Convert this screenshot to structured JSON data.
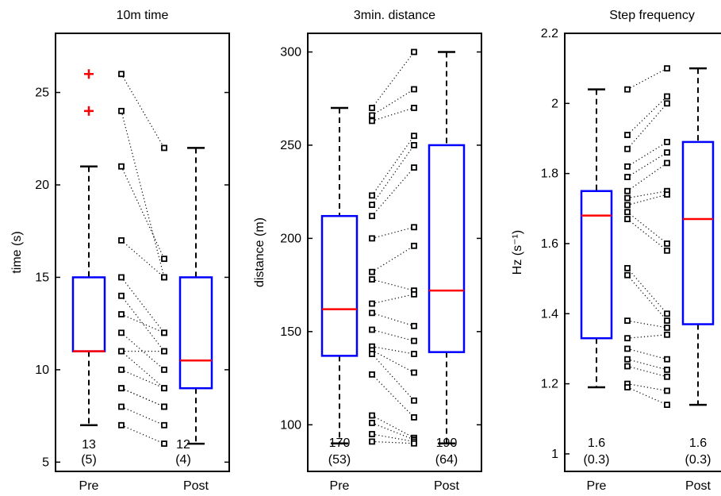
{
  "chart_data": [
    {
      "type": "box",
      "title": "10m time",
      "ylabel": "time (s)",
      "ylim": [
        4.5,
        28.2
      ],
      "yticks": [
        5,
        10,
        15,
        20,
        25
      ],
      "yticklabels": [
        "5",
        "10",
        "15",
        "20",
        "25"
      ],
      "categories": [
        "Pre",
        "Post"
      ],
      "boxes": [
        {
          "name": "Pre",
          "whisker_low": 7,
          "q1": 11,
          "median": 11,
          "q3": 15,
          "whisker_high": 21,
          "outliers": [
            24,
            26
          ]
        },
        {
          "name": "Post",
          "whisker_low": 6,
          "q1": 9,
          "median": 10.5,
          "q3": 15,
          "whisker_high": 22,
          "outliers": []
        }
      ],
      "annotations": [
        {
          "category": "Pre",
          "value": "13",
          "sd": "(5)"
        },
        {
          "category": "Post",
          "value": "12",
          "sd": "(4)"
        }
      ],
      "pairs": [
        [
          26,
          22
        ],
        [
          24,
          15
        ],
        [
          21,
          16
        ],
        [
          17,
          15
        ],
        [
          15,
          12
        ],
        [
          14,
          11
        ],
        [
          13,
          12
        ],
        [
          12,
          10
        ],
        [
          11,
          9
        ],
        [
          11,
          11
        ],
        [
          10,
          9
        ],
        [
          9,
          8
        ],
        [
          9,
          8
        ],
        [
          8,
          7
        ],
        [
          7,
          6
        ]
      ]
    },
    {
      "type": "box",
      "title": "3min. distance",
      "ylabel": "distance (m)",
      "ylim": [
        75,
        310
      ],
      "yticks": [
        100,
        150,
        200,
        250,
        300
      ],
      "yticklabels": [
        "100",
        "150",
        "200",
        "250",
        "300"
      ],
      "categories": [
        "Pre",
        "Post"
      ],
      "boxes": [
        {
          "name": "Pre",
          "whisker_low": 90,
          "q1": 137,
          "median": 162,
          "q3": 212,
          "whisker_high": 270,
          "outliers": []
        },
        {
          "name": "Post",
          "whisker_low": 90,
          "q1": 139,
          "median": 172,
          "q3": 250,
          "whisker_high": 300,
          "outliers": []
        }
      ],
      "annotations": [
        {
          "category": "Pre",
          "value": "170",
          "sd": "(53)"
        },
        {
          "category": "Post",
          "value": "190",
          "sd": "(64)"
        }
      ],
      "pairs": [
        [
          270,
          300
        ],
        [
          266,
          280
        ],
        [
          263,
          270
        ],
        [
          223,
          255
        ],
        [
          218,
          250
        ],
        [
          212,
          238
        ],
        [
          200,
          206
        ],
        [
          182,
          196
        ],
        [
          178,
          172
        ],
        [
          165,
          170
        ],
        [
          160,
          153
        ],
        [
          151,
          145
        ],
        [
          142,
          138
        ],
        [
          140,
          128
        ],
        [
          138,
          113
        ],
        [
          127,
          104
        ],
        [
          105,
          93
        ],
        [
          101,
          92
        ],
        [
          95,
          91
        ],
        [
          91,
          90
        ]
      ]
    },
    {
      "type": "box",
      "title": "Step frequency",
      "ylabel": "Hz (s⁻¹)",
      "ylim": [
        0.95,
        2.2
      ],
      "yticks": [
        1,
        1.2,
        1.4,
        1.6,
        1.8,
        2,
        2.2
      ],
      "yticklabels": [
        "1",
        "1.2",
        "1.4",
        "1.6",
        "1.8",
        "2",
        "2.2"
      ],
      "categories": [
        "Pre",
        "Post"
      ],
      "boxes": [
        {
          "name": "Pre",
          "whisker_low": 1.19,
          "q1": 1.33,
          "median": 1.68,
          "q3": 1.75,
          "whisker_high": 2.04,
          "outliers": []
        },
        {
          "name": "Post",
          "whisker_low": 1.14,
          "q1": 1.37,
          "median": 1.67,
          "q3": 1.89,
          "whisker_high": 2.1,
          "outliers": []
        }
      ],
      "annotations": [
        {
          "category": "Pre",
          "value": "1.6",
          "sd": "(0.3)"
        },
        {
          "category": "Post",
          "value": "1.6",
          "sd": "(0.3)"
        }
      ],
      "pairs": [
        [
          2.04,
          2.1
        ],
        [
          1.91,
          2.02
        ],
        [
          1.87,
          2.0
        ],
        [
          1.82,
          1.89
        ],
        [
          1.79,
          1.86
        ],
        [
          1.75,
          1.83
        ],
        [
          1.73,
          1.75
        ],
        [
          1.71,
          1.74
        ],
        [
          1.69,
          1.6
        ],
        [
          1.67,
          1.58
        ],
        [
          1.53,
          1.4
        ],
        [
          1.51,
          1.38
        ],
        [
          1.38,
          1.36
        ],
        [
          1.33,
          1.34
        ],
        [
          1.3,
          1.27
        ],
        [
          1.27,
          1.24
        ],
        [
          1.25,
          1.22
        ],
        [
          1.2,
          1.18
        ],
        [
          1.19,
          1.14
        ]
      ]
    }
  ]
}
